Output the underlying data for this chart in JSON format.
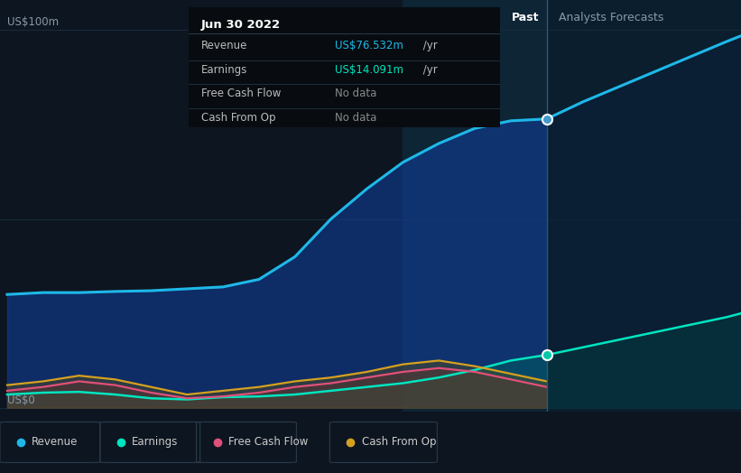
{
  "background_color": "#0d1520",
  "plot_bg_color": "#0d1520",
  "title_box_bg": "#080c10",
  "title_box": {
    "date": "Jun 30 2022",
    "rows": [
      {
        "label": "Revenue",
        "value": "US$76.532m",
        "unit": " /yr",
        "color": "#1eb8e8"
      },
      {
        "label": "Earnings",
        "value": "US$14.091m",
        "unit": " /yr",
        "color": "#00e5c0"
      },
      {
        "label": "Free Cash Flow",
        "value": "No data",
        "color": "#888888"
      },
      {
        "label": "Cash From Op",
        "value": "No data",
        "color": "#888888"
      }
    ]
  },
  "ylabel_text": "US$100m",
  "ylabel_zero": "US$0",
  "past_label": "Past",
  "forecast_label": "Analysts Forecasts",
  "divider_x": 2022.5,
  "x_min": 2018.7,
  "x_max": 2023.85,
  "y_min": -1,
  "y_max": 108,
  "revenue_past": {
    "x": [
      2018.75,
      2019.0,
      2019.25,
      2019.5,
      2019.75,
      2020.0,
      2020.25,
      2020.5,
      2020.75,
      2021.0,
      2021.25,
      2021.5,
      2021.75,
      2022.0,
      2022.25,
      2022.5
    ],
    "y": [
      30,
      30.5,
      30.5,
      30.8,
      31,
      31.5,
      32,
      34,
      40,
      50,
      58,
      65,
      70,
      74,
      76,
      76.5
    ]
  },
  "revenue_future": {
    "x": [
      2022.5,
      2022.75,
      2023.0,
      2023.25,
      2023.5,
      2023.75,
      2023.85
    ],
    "y": [
      76.5,
      81,
      85,
      89,
      93,
      97,
      98.5
    ]
  },
  "earnings_past": {
    "x": [
      2018.75,
      2019.0,
      2019.25,
      2019.5,
      2019.75,
      2020.0,
      2020.25,
      2020.5,
      2020.75,
      2021.0,
      2021.25,
      2021.5,
      2021.75,
      2022.0,
      2022.25,
      2022.5
    ],
    "y": [
      3.5,
      4,
      4.2,
      3.5,
      2.5,
      2.2,
      2.8,
      3.0,
      3.5,
      4.5,
      5.5,
      6.5,
      8,
      10,
      12.5,
      14.0
    ]
  },
  "earnings_future": {
    "x": [
      2022.5,
      2022.75,
      2023.0,
      2023.25,
      2023.5,
      2023.75,
      2023.85
    ],
    "y": [
      14.0,
      16,
      18,
      20,
      22,
      24,
      25
    ]
  },
  "fcf_past": {
    "x": [
      2018.75,
      2019.0,
      2019.25,
      2019.5,
      2019.75,
      2020.0,
      2020.25,
      2020.5,
      2020.75,
      2021.0,
      2021.25,
      2021.5,
      2021.75,
      2022.0,
      2022.25,
      2022.5
    ],
    "y": [
      4.5,
      5.5,
      7,
      6,
      4,
      2.5,
      3,
      4,
      5.5,
      6.5,
      8,
      9.5,
      10.5,
      9.5,
      7.5,
      5.5
    ]
  },
  "cashfromop_past": {
    "x": [
      2018.75,
      2019.0,
      2019.25,
      2019.5,
      2019.75,
      2020.0,
      2020.25,
      2020.5,
      2020.75,
      2021.0,
      2021.25,
      2021.5,
      2021.75,
      2022.0,
      2022.25,
      2022.5
    ],
    "y": [
      6,
      7,
      8.5,
      7.5,
      5.5,
      3.5,
      4.5,
      5.5,
      7,
      8,
      9.5,
      11.5,
      12.5,
      11,
      9,
      7
    ]
  },
  "highlight_region_start": 2021.5,
  "highlight_region_end": 2022.5,
  "colors": {
    "revenue": "#1eb8e8",
    "earnings": "#00e5c0",
    "fcf": "#e0507a",
    "cashfromop": "#d4a020",
    "earnings_fill": "#1a8080",
    "revenue_fill_past": "#1a4060",
    "revenue_fill_future": "#0a2535"
  },
  "legend_items": [
    {
      "label": "Revenue",
      "color": "#1eb8e8"
    },
    {
      "label": "Earnings",
      "color": "#00e5c0"
    },
    {
      "label": "Free Cash Flow",
      "color": "#e0507a"
    },
    {
      "label": "Cash From Op",
      "color": "#d4a020"
    }
  ]
}
